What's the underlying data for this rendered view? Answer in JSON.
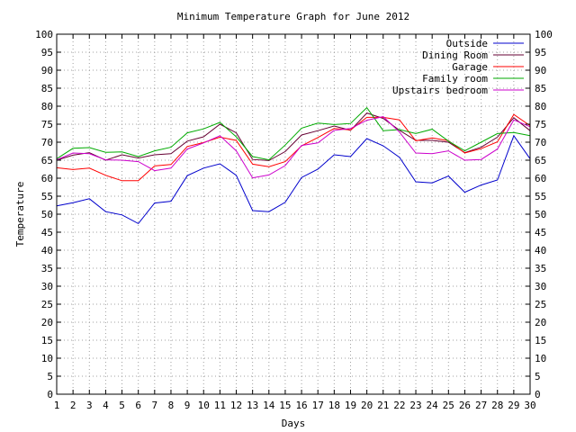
{
  "chart_data": {
    "type": "line",
    "title": "Minimum Temperature Graph for June 2012",
    "xlabel": "Days",
    "ylabel": "Temperature",
    "xlim": [
      1,
      30
    ],
    "ylim": [
      0,
      100
    ],
    "y_tick_step": 5,
    "grid": true,
    "legend_position": "top-right",
    "x": [
      1,
      2,
      3,
      4,
      5,
      6,
      7,
      8,
      9,
      10,
      11,
      12,
      13,
      14,
      15,
      16,
      17,
      18,
      19,
      20,
      21,
      22,
      23,
      24,
      25,
      26,
      27,
      28,
      29,
      30
    ],
    "series": [
      {
        "name": "Outside",
        "color": "#0000cc",
        "values": [
          52.3,
          53.2,
          54.3,
          50.7,
          49.8,
          47.4,
          53.1,
          53.6,
          60.7,
          62.8,
          64.0,
          60.8,
          51.0,
          50.7,
          53.3,
          60.2,
          62.5,
          66.5,
          66.0,
          71.0,
          69.0,
          65.8,
          59.0,
          58.7,
          60.6,
          56.1,
          58.1,
          59.5,
          71.8,
          65.4
        ]
      },
      {
        "name": "Dining Room",
        "color": "#660033",
        "values": [
          65.0,
          66.4,
          67.1,
          65.0,
          66.5,
          65.6,
          66.5,
          66.8,
          70.3,
          71.5,
          75.0,
          72.6,
          65.2,
          64.9,
          67.4,
          72.0,
          73.2,
          74.5,
          73.3,
          78.1,
          76.6,
          73.3,
          70.5,
          70.5,
          70.0,
          67.1,
          68.6,
          71.4,
          76.8,
          73.2
        ]
      },
      {
        "name": "Garage",
        "color": "#ff0000",
        "values": [
          62.9,
          62.4,
          62.8,
          60.8,
          59.3,
          59.3,
          63.4,
          63.8,
          68.8,
          69.9,
          71.4,
          70.5,
          63.9,
          63.2,
          64.6,
          69.0,
          71.3,
          73.8,
          73.4,
          76.9,
          76.9,
          76.2,
          70.4,
          71.2,
          70.4,
          67.0,
          68.2,
          70.1,
          77.7,
          74.6
        ]
      },
      {
        "name": "Family room",
        "color": "#00aa00",
        "values": [
          65.4,
          68.3,
          68.5,
          67.2,
          67.3,
          66.0,
          67.6,
          68.6,
          72.6,
          73.7,
          75.5,
          71.5,
          66.0,
          65.1,
          69.2,
          73.9,
          75.3,
          74.9,
          75.2,
          79.6,
          73.2,
          73.5,
          72.4,
          73.6,
          70.3,
          67.6,
          70.0,
          72.4,
          72.7,
          71.8
        ]
      },
      {
        "name": "Upstairs bedroom",
        "color": "#cc00cc",
        "values": [
          65.1,
          67.0,
          66.8,
          65.1,
          65.0,
          64.6,
          62.1,
          62.8,
          68.1,
          69.8,
          71.8,
          67.6,
          60.1,
          60.9,
          63.5,
          69.1,
          69.8,
          73.3,
          73.8,
          76.1,
          77.1,
          72.8,
          67.0,
          66.8,
          67.6,
          65.0,
          65.2,
          68.1,
          76.2,
          74.3
        ]
      }
    ]
  }
}
